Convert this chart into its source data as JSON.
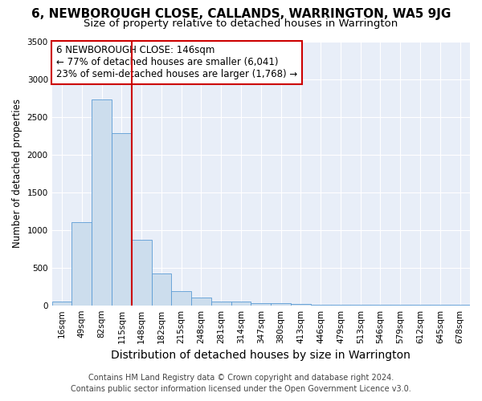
{
  "title": "6, NEWBOROUGH CLOSE, CALLANDS, WARRINGTON, WA5 9JG",
  "subtitle": "Size of property relative to detached houses in Warrington",
  "xlabel": "Distribution of detached houses by size in Warrington",
  "ylabel": "Number of detached properties",
  "bar_color": "#ccdded",
  "bar_edge_color": "#5b9bd5",
  "categories": [
    "16sqm",
    "49sqm",
    "82sqm",
    "115sqm",
    "148sqm",
    "182sqm",
    "215sqm",
    "248sqm",
    "281sqm",
    "314sqm",
    "347sqm",
    "380sqm",
    "413sqm",
    "446sqm",
    "479sqm",
    "513sqm",
    "546sqm",
    "579sqm",
    "612sqm",
    "645sqm",
    "678sqm"
  ],
  "values": [
    50,
    1100,
    2730,
    2280,
    870,
    420,
    185,
    100,
    55,
    45,
    30,
    25,
    20,
    5,
    5,
    5,
    5,
    5,
    5,
    5,
    5
  ],
  "vline_position": 3.5,
  "vline_color": "#cc0000",
  "annotation_text": "6 NEWBOROUGH CLOSE: 146sqm\n← 77% of detached houses are smaller (6,041)\n23% of semi-detached houses are larger (1,768) →",
  "annotation_box_facecolor": "#ffffff",
  "annotation_box_edgecolor": "#cc0000",
  "ylim": [
    0,
    3500
  ],
  "yticks": [
    0,
    500,
    1000,
    1500,
    2000,
    2500,
    3000,
    3500
  ],
  "footer_line1": "Contains HM Land Registry data © Crown copyright and database right 2024.",
  "footer_line2": "Contains public sector information licensed under the Open Government Licence v3.0.",
  "fig_bg_color": "#ffffff",
  "plot_bg_color": "#e8eef8",
  "grid_color": "#ffffff",
  "title_fontsize": 11,
  "subtitle_fontsize": 9.5,
  "xlabel_fontsize": 10,
  "ylabel_fontsize": 8.5,
  "tick_fontsize": 7.5,
  "annotation_fontsize": 8.5,
  "footer_fontsize": 7
}
